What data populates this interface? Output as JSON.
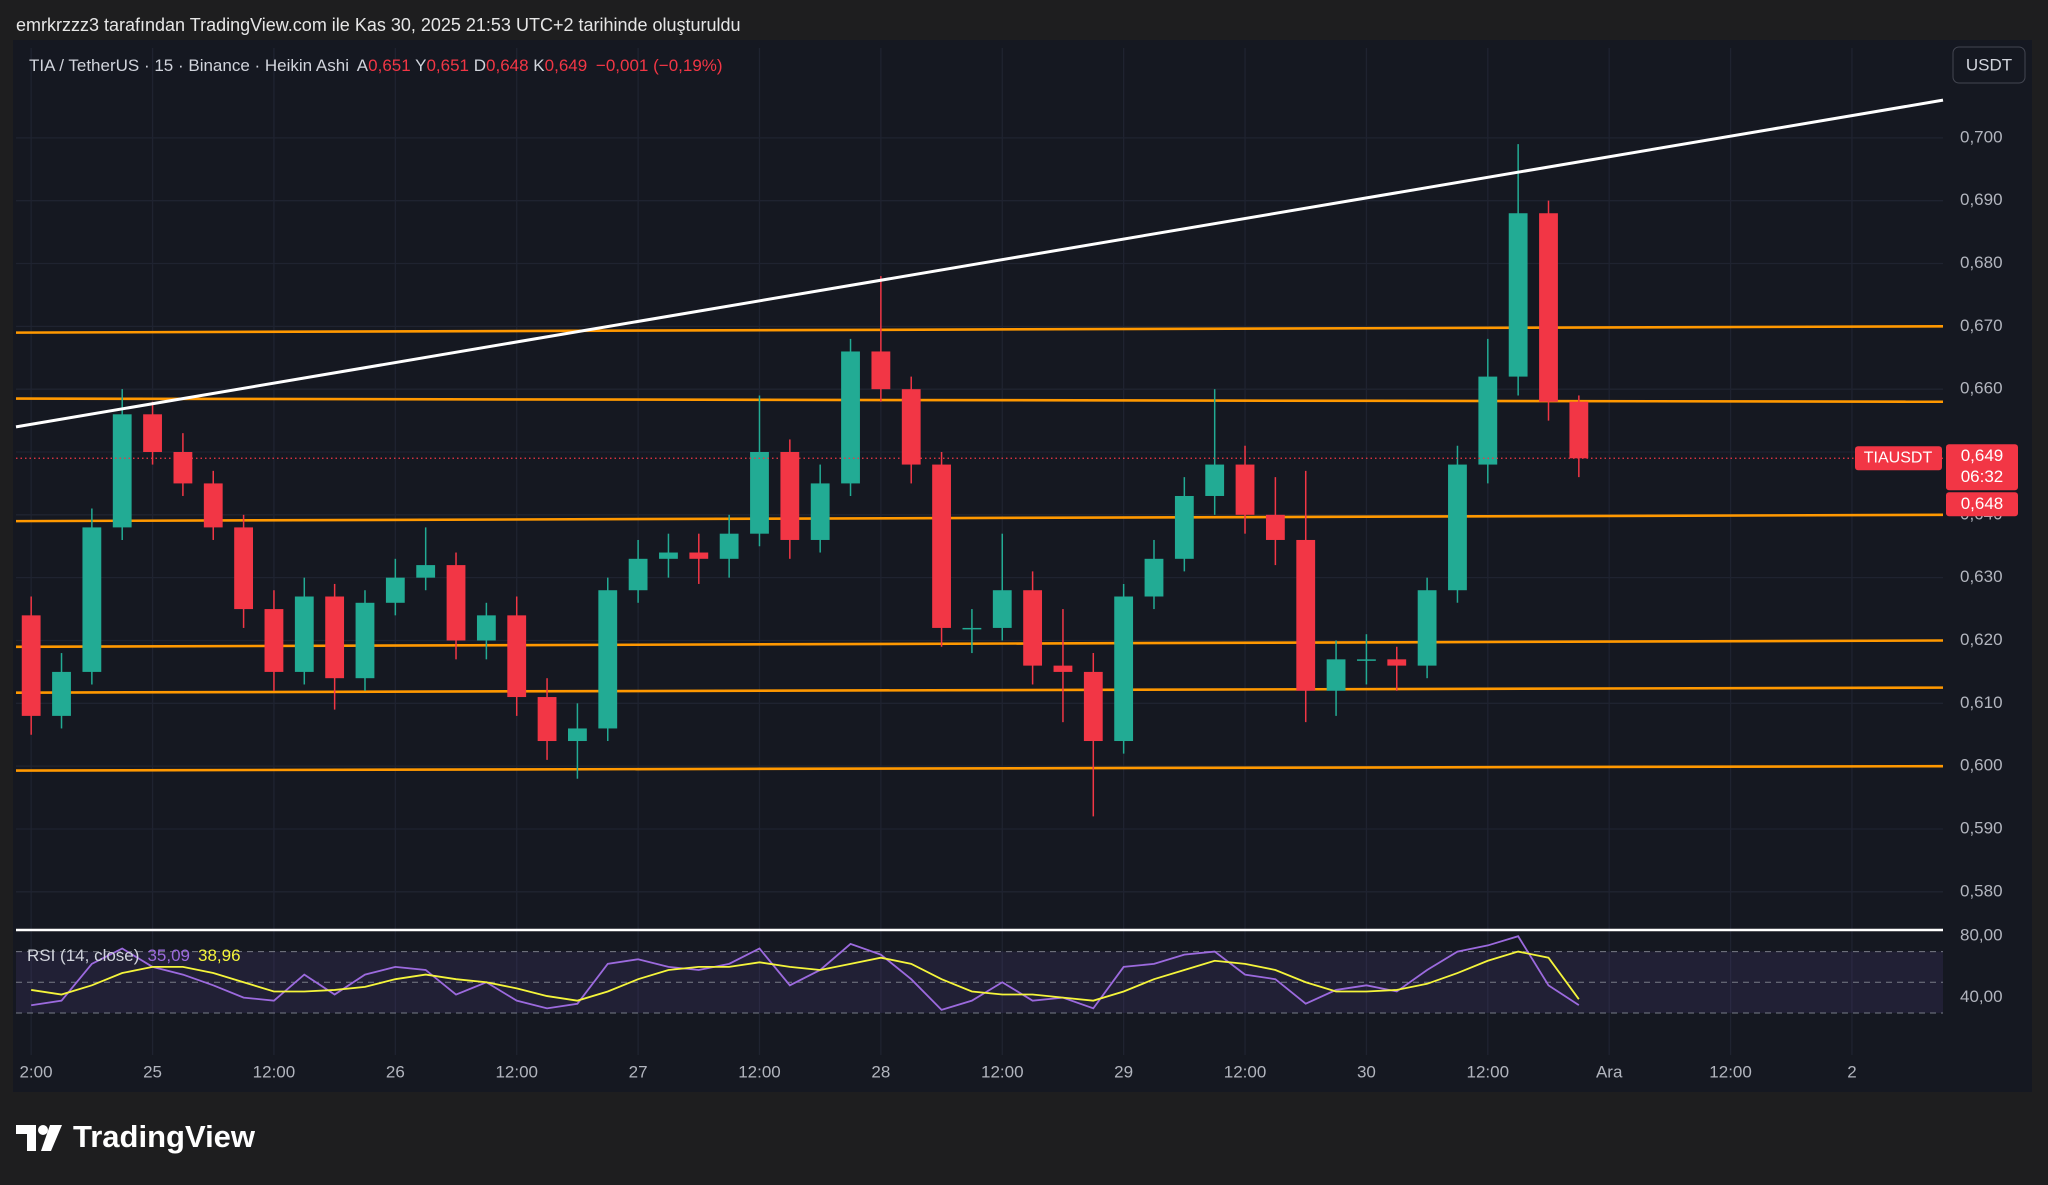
{
  "header": {
    "attribution": "emrkrzzz3 tarafından TradingView.com ile Kas 30, 2025 21:53 UTC+2 tarihinde oluşturuldu"
  },
  "footer": {
    "brand": "TradingView"
  },
  "chart_data": {
    "type": "candlestick",
    "title": "TIA / TetherUS · 15 · Binance · Heikin Ashi",
    "ohlc": [
      {
        "name": "A",
        "text": "0,651"
      },
      {
        "name": "Y",
        "text": "0,651"
      },
      {
        "name": "D",
        "text": "0,648"
      },
      {
        "name": "K",
        "text": "0,649"
      }
    ],
    "change": "−0,001 (−0,19%)",
    "currency": "USDT",
    "up_color": "#22ab94",
    "down_color": "#f23645",
    "grid": true,
    "xlim": [
      10.5,
      201
    ],
    "xticks": [
      {
        "value": 12,
        "label": "2:00"
      },
      {
        "value": 24,
        "label": "25"
      },
      {
        "value": 36,
        "label": "12:00"
      },
      {
        "value": 48,
        "label": "26"
      },
      {
        "value": 60,
        "label": "12:00"
      },
      {
        "value": 72,
        "label": "27"
      },
      {
        "value": 84,
        "label": "12:00"
      },
      {
        "value": 96,
        "label": "28"
      },
      {
        "value": 108,
        "label": "12:00"
      },
      {
        "value": 120,
        "label": "29"
      },
      {
        "value": 132,
        "label": "12:00"
      },
      {
        "value": 144,
        "label": "30"
      },
      {
        "value": 156,
        "label": "12:00"
      },
      {
        "value": 168,
        "label": "Ara"
      },
      {
        "value": 180,
        "label": "12:00"
      },
      {
        "value": 192,
        "label": "2"
      }
    ],
    "ylim": [
      0.5744,
      0.7143
    ],
    "yticks": [
      {
        "value": 0.58,
        "label": "0,580"
      },
      {
        "value": 0.59,
        "label": "0,590"
      },
      {
        "value": 0.6,
        "label": "0,600"
      },
      {
        "value": 0.61,
        "label": "0,610"
      },
      {
        "value": 0.62,
        "label": "0,620"
      },
      {
        "value": 0.63,
        "label": "0,630"
      },
      {
        "value": 0.64,
        "label": "0,640"
      },
      {
        "value": 0.65,
        "label": "0,650"
      },
      {
        "value": 0.66,
        "label": "0,660"
      },
      {
        "value": 0.67,
        "label": "0,670"
      },
      {
        "value": 0.68,
        "label": "0,680"
      },
      {
        "value": 0.69,
        "label": "0,690"
      },
      {
        "value": 0.7,
        "label": "0,700"
      }
    ],
    "x": [
      12,
      15,
      18,
      21,
      24,
      27,
      30,
      33,
      36,
      39,
      42,
      45,
      48,
      51,
      54,
      57,
      60,
      63,
      66,
      69,
      72,
      75,
      78,
      81,
      84,
      87,
      90,
      93,
      96,
      99,
      102,
      105,
      108,
      111,
      114,
      117,
      120,
      123,
      126,
      129,
      132,
      135,
      138,
      141,
      144,
      147,
      150,
      153,
      156,
      159,
      162,
      165
    ],
    "open": [
      0.624,
      0.608,
      0.615,
      0.638,
      0.656,
      0.65,
      0.645,
      0.638,
      0.625,
      0.615,
      0.627,
      0.614,
      0.626,
      0.63,
      0.632,
      0.62,
      0.624,
      0.611,
      0.604,
      0.606,
      0.628,
      0.633,
      0.634,
      0.633,
      0.637,
      0.65,
      0.636,
      0.645,
      0.666,
      0.66,
      0.648,
      0.622,
      0.622,
      0.628,
      0.616,
      0.615,
      0.604,
      0.627,
      0.633,
      0.643,
      0.648,
      0.64,
      0.636,
      0.612,
      0.617,
      0.617,
      0.616,
      0.628,
      0.648,
      0.662,
      0.688,
      0.658
    ],
    "high": [
      0.627,
      0.618,
      0.641,
      0.66,
      0.658,
      0.653,
      0.647,
      0.64,
      0.628,
      0.63,
      0.629,
      0.628,
      0.633,
      0.638,
      0.634,
      0.626,
      0.627,
      0.614,
      0.61,
      0.63,
      0.636,
      0.637,
      0.637,
      0.64,
      0.659,
      0.652,
      0.648,
      0.668,
      0.678,
      0.662,
      0.65,
      0.625,
      0.637,
      0.631,
      0.625,
      0.618,
      0.629,
      0.636,
      0.646,
      0.66,
      0.651,
      0.646,
      0.647,
      0.62,
      0.621,
      0.619,
      0.63,
      0.651,
      0.668,
      0.699,
      0.69,
      0.659
    ],
    "low": [
      0.605,
      0.606,
      0.613,
      0.636,
      0.648,
      0.643,
      0.636,
      0.622,
      0.612,
      0.613,
      0.609,
      0.612,
      0.624,
      0.628,
      0.617,
      0.617,
      0.608,
      0.601,
      0.598,
      0.604,
      0.626,
      0.63,
      0.629,
      0.63,
      0.635,
      0.633,
      0.634,
      0.643,
      0.658,
      0.645,
      0.619,
      0.618,
      0.62,
      0.613,
      0.607,
      0.592,
      0.602,
      0.625,
      0.631,
      0.64,
      0.637,
      0.632,
      0.607,
      0.608,
      0.613,
      0.612,
      0.614,
      0.626,
      0.645,
      0.659,
      0.655,
      0.646
    ],
    "close": [
      0.608,
      0.615,
      0.638,
      0.656,
      0.65,
      0.645,
      0.638,
      0.625,
      0.615,
      0.627,
      0.614,
      0.626,
      0.63,
      0.632,
      0.62,
      0.624,
      0.611,
      0.604,
      0.606,
      0.628,
      0.633,
      0.634,
      0.633,
      0.637,
      0.65,
      0.636,
      0.645,
      0.666,
      0.66,
      0.648,
      0.622,
      0.622,
      0.628,
      0.616,
      0.615,
      0.604,
      0.627,
      0.633,
      0.643,
      0.648,
      0.64,
      0.636,
      0.612,
      0.617,
      0.617,
      0.616,
      0.628,
      0.648,
      0.662,
      0.688,
      0.658,
      0.649
    ],
    "trend_line": {
      "color": "#ffffff",
      "x": [
        10.5,
        201
      ],
      "y": [
        0.654,
        0.706
      ]
    },
    "levels": [
      {
        "color": "#ff9800",
        "x": [
          10.5,
          201
        ],
        "y": [
          0.669,
          0.67
        ]
      },
      {
        "color": "#ff9800",
        "x": [
          10.5,
          201
        ],
        "y": [
          0.6585,
          0.658
        ]
      },
      {
        "color": "#ff9800",
        "x": [
          10.5,
          201
        ],
        "y": [
          0.639,
          0.64
        ]
      },
      {
        "color": "#ff9800",
        "x": [
          10.5,
          201
        ],
        "y": [
          0.619,
          0.62
        ]
      },
      {
        "color": "#ff9800",
        "x": [
          10.5,
          201
        ],
        "y": [
          0.6117,
          0.6125
        ]
      },
      {
        "color": "#ff9800",
        "x": [
          10.5,
          201
        ],
        "y": [
          0.5993,
          0.6
        ]
      }
    ],
    "last_price": {
      "value": 0.649,
      "label": "0,649"
    },
    "price_tag": {
      "symbol": "TIAUSDT",
      "countdown": "06:32",
      "second": "0,648"
    },
    "rsi": {
      "title": "RSI (14, close)",
      "ylim": [
        2.6,
        83.4
      ],
      "yticks": [
        {
          "value": 80,
          "label": "80,00"
        },
        {
          "value": 40,
          "label": "40,00"
        }
      ],
      "bands": [
        30,
        50,
        70
      ],
      "series": [
        {
          "color": "#9c6ade",
          "last_label": "35,09",
          "values": [
            35,
            38,
            62,
            72,
            60,
            55,
            48,
            40,
            38,
            55,
            42,
            55,
            60,
            58,
            42,
            50,
            38,
            33,
            36,
            62,
            65,
            60,
            58,
            62,
            72,
            48,
            58,
            75,
            68,
            52,
            32,
            38,
            50,
            38,
            40,
            33,
            60,
            62,
            68,
            70,
            55,
            52,
            36,
            45,
            48,
            44,
            58,
            70,
            74,
            80,
            48,
            35.09
          ]
        },
        {
          "color": "#f5f53b",
          "last_label": "38,96",
          "values": [
            45,
            42,
            48,
            56,
            60,
            60,
            56,
            50,
            44,
            44,
            45,
            47,
            52,
            55,
            52,
            50,
            46,
            41,
            38,
            44,
            52,
            58,
            60,
            60,
            63,
            60,
            58,
            62,
            66,
            62,
            52,
            44,
            42,
            42,
            40,
            38,
            44,
            52,
            58,
            64,
            62,
            58,
            50,
            44,
            44,
            45,
            49,
            56,
            64,
            70,
            66,
            38.96
          ]
        }
      ]
    }
  }
}
